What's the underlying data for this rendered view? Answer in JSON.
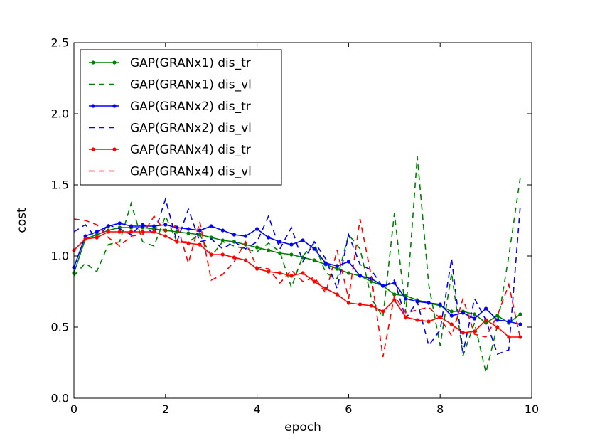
{
  "chart_data": {
    "type": "line",
    "title": "",
    "xlabel": "epoch",
    "ylabel": "cost",
    "xlim": [
      0,
      10
    ],
    "ylim": [
      0.0,
      2.5
    ],
    "xticks": [
      0,
      2,
      4,
      6,
      8,
      10
    ],
    "yticks": [
      0.0,
      0.5,
      1.0,
      1.5,
      2.0,
      2.5
    ],
    "xtick_labels": [
      "0",
      "2",
      "4",
      "6",
      "8",
      "10"
    ],
    "ytick_labels": [
      "0.0",
      "0.5",
      "1.0",
      "1.5",
      "2.0",
      "2.5"
    ],
    "grid": false,
    "legend_position": "top-left",
    "x": [
      0,
      0.25,
      0.5,
      0.75,
      1.0,
      1.25,
      1.5,
      1.75,
      2.0,
      2.25,
      2.5,
      2.75,
      3.0,
      3.25,
      3.5,
      3.75,
      4.0,
      4.25,
      4.5,
      4.75,
      5.0,
      5.25,
      5.5,
      5.75,
      6.0,
      6.25,
      6.5,
      6.75,
      7.0,
      7.25,
      7.5,
      7.75,
      8.0,
      8.25,
      8.5,
      8.75,
      9.0,
      9.25,
      9.5,
      9.75
    ],
    "series": [
      {
        "name": "GAP(GRANx1) dis_tr",
        "color": "#008000",
        "style": "solid",
        "marker": true,
        "values": [
          0.88,
          1.12,
          1.15,
          1.18,
          1.2,
          1.2,
          1.2,
          1.19,
          1.18,
          1.17,
          1.16,
          1.15,
          1.13,
          1.11,
          1.1,
          1.08,
          1.06,
          1.04,
          1.02,
          1.01,
          0.99,
          0.97,
          0.94,
          0.91,
          0.88,
          0.86,
          0.82,
          0.79,
          0.73,
          0.72,
          0.69,
          0.67,
          0.65,
          0.61,
          0.61,
          0.59,
          0.53,
          0.58,
          0.53,
          0.59
        ]
      },
      {
        "name": "GAP(GRANx1) dis_vl",
        "color": "#008000",
        "style": "dashed",
        "marker": false,
        "values": [
          0.86,
          0.95,
          0.89,
          1.08,
          1.1,
          1.37,
          1.1,
          1.07,
          1.28,
          1.1,
          1.1,
          1.15,
          1.0,
          1.1,
          1.07,
          1.05,
          1.03,
          1.09,
          1.03,
          0.78,
          1.0,
          1.09,
          0.88,
          0.84,
          1.15,
          1.05,
          0.7,
          0.57,
          1.3,
          0.6,
          1.7,
          0.8,
          0.37,
          0.88,
          0.3,
          0.53,
          0.18,
          0.51,
          1.0,
          1.55
        ]
      },
      {
        "name": "GAP(GRANx2) dis_tr",
        "color": "#0000ff",
        "style": "solid",
        "marker": true,
        "values": [
          0.92,
          1.14,
          1.17,
          1.21,
          1.23,
          1.21,
          1.21,
          1.21,
          1.22,
          1.2,
          1.19,
          1.18,
          1.21,
          1.18,
          1.15,
          1.14,
          1.19,
          1.13,
          1.1,
          1.08,
          1.11,
          1.05,
          0.95,
          0.93,
          0.96,
          0.86,
          0.84,
          0.79,
          0.81,
          0.7,
          0.68,
          0.67,
          0.66,
          0.58,
          0.6,
          0.56,
          0.63,
          0.55,
          0.54,
          0.52
        ]
      },
      {
        "name": "GAP(GRANx2) dis_vl",
        "color": "#0000ff",
        "style": "dashed",
        "marker": false,
        "values": [
          1.17,
          1.22,
          1.12,
          1.22,
          1.19,
          1.15,
          1.23,
          1.15,
          1.4,
          1.1,
          1.33,
          1.1,
          1.12,
          1.05,
          1.1,
          1.05,
          1.1,
          1.28,
          1.05,
          1.2,
          0.96,
          1.1,
          0.98,
          0.77,
          1.15,
          0.94,
          0.9,
          0.78,
          0.83,
          0.56,
          0.68,
          0.37,
          0.48,
          0.98,
          0.32,
          0.7,
          0.55,
          0.31,
          0.34,
          1.35
        ]
      },
      {
        "name": "GAP(GRANx4) dis_tr",
        "color": "#ff0000",
        "style": "solid",
        "marker": true,
        "values": [
          1.04,
          1.12,
          1.13,
          1.17,
          1.17,
          1.17,
          1.17,
          1.17,
          1.14,
          1.1,
          1.09,
          1.08,
          1.01,
          1.01,
          0.99,
          0.97,
          0.91,
          0.89,
          0.88,
          0.86,
          0.88,
          0.82,
          0.77,
          0.73,
          0.67,
          0.66,
          0.65,
          0.61,
          0.69,
          0.57,
          0.55,
          0.54,
          0.57,
          0.52,
          0.46,
          0.47,
          0.55,
          0.5,
          0.43,
          0.43
        ]
      },
      {
        "name": "GAP(GRANx4) dis_vl",
        "color": "#ff0000",
        "style": "dashed",
        "marker": false,
        "values": [
          1.26,
          1.25,
          1.22,
          1.13,
          1.07,
          1.14,
          1.15,
          1.28,
          1.17,
          1.22,
          0.95,
          1.24,
          0.83,
          0.87,
          0.96,
          1.1,
          0.92,
          0.91,
          0.81,
          0.9,
          0.82,
          0.85,
          0.74,
          1.04,
          0.7,
          1.26,
          0.85,
          0.29,
          0.72,
          0.6,
          0.62,
          0.64,
          0.56,
          0.44,
          0.7,
          0.45,
          0.43,
          0.58,
          0.8,
          0.42
        ]
      }
    ]
  }
}
